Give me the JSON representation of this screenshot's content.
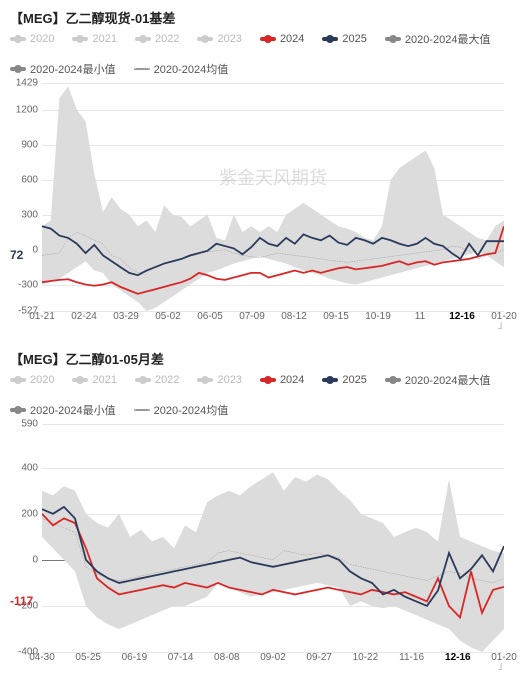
{
  "watermark": "紫金天风期货",
  "legend": {
    "items": [
      {
        "label": "2020",
        "color": "#cccccc",
        "inactive": true
      },
      {
        "label": "2021",
        "color": "#cccccc",
        "inactive": true
      },
      {
        "label": "2022",
        "color": "#cccccc",
        "inactive": true
      },
      {
        "label": "2023",
        "color": "#cccccc",
        "inactive": true
      },
      {
        "label": "2024",
        "color": "#d92626",
        "inactive": false
      },
      {
        "label": "2025",
        "color": "#2a3a5a",
        "inactive": false
      },
      {
        "label": "2020-2024最大值",
        "color": "#888888",
        "inactive": false
      },
      {
        "label": "2020-2024最小值",
        "color": "#888888",
        "inactive": false
      },
      {
        "label": "2020-2024均值",
        "color": "#999999",
        "inactive": false,
        "dashed": true
      }
    ]
  },
  "charts": [
    {
      "title": "【MEG】乙二醇现货-01基差",
      "ylim": [
        -527,
        1429
      ],
      "yticks": [
        -527,
        -300,
        0,
        300,
        600,
        900,
        1200,
        1429
      ],
      "xticks": [
        "01-21",
        "02-24",
        "03-29",
        "05-02",
        "06-05",
        "07-09",
        "08-12",
        "09-15",
        "10-19",
        "11",
        "12-16",
        "01-20"
      ],
      "xtick_bold_idx": 10,
      "xrange": 53,
      "highlight": {
        "value": 72,
        "color": "#2a3a5a",
        "text": "72"
      },
      "band_color": "#dcdcdc",
      "series": {
        "band_max": [
          200,
          250,
          1300,
          1400,
          1200,
          1100,
          650,
          320,
          450,
          350,
          300,
          200,
          250,
          150,
          380,
          300,
          280,
          200,
          250,
          300,
          100,
          80,
          300,
          150,
          200,
          150,
          200,
          150,
          300,
          350,
          400,
          350,
          300,
          250,
          200,
          180,
          150,
          100,
          80,
          200,
          600,
          700,
          750,
          800,
          850,
          700,
          300,
          250,
          200,
          150,
          100,
          80,
          200,
          250
        ],
        "band_min": [
          -300,
          -280,
          -250,
          -200,
          -150,
          -100,
          -180,
          -200,
          -300,
          -350,
          -400,
          -450,
          -527,
          -500,
          -450,
          -400,
          -350,
          -300,
          -250,
          -200,
          -180,
          -150,
          -120,
          -100,
          -80,
          -60,
          -80,
          -100,
          -120,
          -150,
          -180,
          -200,
          -220,
          -250,
          -270,
          -290,
          -300,
          -280,
          -260,
          -240,
          -220,
          -200,
          -180,
          -160,
          -140,
          -120,
          -100,
          -80,
          -60,
          -40,
          -20,
          -50,
          -100,
          -150
        ],
        "mean": [
          -50,
          -40,
          -30,
          100,
          150,
          120,
          80,
          50,
          -50,
          -80,
          -150,
          -200,
          -180,
          -150,
          -120,
          -100,
          -80,
          -60,
          -40,
          -20,
          -10,
          0,
          -30,
          -50,
          -60,
          -70,
          -50,
          -30,
          -40,
          -50,
          -60,
          -70,
          -80,
          -90,
          -100,
          -110,
          -100,
          -90,
          -80,
          -70,
          -60,
          -50,
          -40,
          -30,
          -20,
          -10,
          0,
          30,
          20,
          -10,
          -80,
          -50,
          -30,
          0
        ],
        "s2024": [
          -280,
          -270,
          -260,
          -255,
          -280,
          -300,
          -310,
          -300,
          -280,
          -320,
          -350,
          -380,
          -360,
          -340,
          -320,
          -300,
          -280,
          -250,
          -200,
          -220,
          -250,
          -260,
          -240,
          -220,
          -200,
          -200,
          -240,
          -220,
          -200,
          -180,
          -200,
          -180,
          -200,
          -180,
          -160,
          -150,
          -170,
          -160,
          -150,
          -140,
          -120,
          -100,
          -130,
          -110,
          -100,
          -130,
          -110,
          -100,
          -90,
          -80,
          -60,
          -40,
          -30,
          200
        ],
        "s2025": [
          200,
          180,
          120,
          100,
          50,
          -30,
          40,
          -50,
          -100,
          -150,
          -200,
          -220,
          -180,
          -150,
          -120,
          -100,
          -80,
          -50,
          -30,
          -10,
          50,
          30,
          10,
          -40,
          20,
          100,
          50,
          30,
          100,
          50,
          130,
          100,
          80,
          120,
          60,
          40,
          100,
          80,
          50,
          100,
          80,
          50,
          30,
          50,
          100,
          50,
          30,
          -30,
          -80,
          50,
          -50,
          72,
          72,
          72
        ]
      }
    },
    {
      "title": "【MEG】乙二醇01-05月差",
      "ylim": [
        -400,
        590
      ],
      "yticks": [
        -400,
        -200,
        0,
        200,
        400,
        590
      ],
      "xticks": [
        "04-30",
        "05-25",
        "06-19",
        "07-14",
        "08-08",
        "09-02",
        "09-27",
        "10-22",
        "11-16",
        "12-16",
        "01-20"
      ],
      "xtick_bold_idx": 9,
      "xrange": 42,
      "highlight": {
        "value": -117,
        "color": "#d92626",
        "text": "-117"
      },
      "band_color": "#dcdcdc",
      "series": {
        "band_max": [
          300,
          280,
          320,
          300,
          200,
          160,
          140,
          200,
          100,
          130,
          80,
          100,
          50,
          150,
          120,
          250,
          280,
          300,
          280,
          320,
          350,
          380,
          300,
          360,
          340,
          370,
          350,
          300,
          260,
          200,
          180,
          160,
          100,
          120,
          140,
          120,
          80,
          350,
          100,
          80,
          60,
          40,
          30
        ],
        "band_min": [
          100,
          50,
          0,
          -50,
          -200,
          -250,
          -280,
          -300,
          -280,
          -260,
          -240,
          -220,
          -200,
          -200,
          -180,
          -160,
          -100,
          -120,
          -140,
          -160,
          -150,
          -140,
          -130,
          -120,
          -110,
          -100,
          -110,
          -120,
          -200,
          -180,
          -200,
          -210,
          -200,
          -220,
          -240,
          -260,
          -280,
          -300,
          -350,
          -380,
          -400,
          -350,
          -300
        ],
        "mean": [
          180,
          160,
          140,
          120,
          -30,
          -60,
          -80,
          -90,
          -80,
          -70,
          -60,
          -50,
          -40,
          -30,
          -20,
          -10,
          30,
          40,
          30,
          20,
          10,
          0,
          40,
          30,
          20,
          30,
          20,
          10,
          -20,
          -30,
          -40,
          -50,
          -60,
          -70,
          -80,
          -90,
          -70,
          -50,
          -60,
          -80,
          -90,
          -100,
          -80
        ],
        "s2024": [
          200,
          150,
          180,
          160,
          50,
          -80,
          -120,
          -150,
          -140,
          -130,
          -120,
          -110,
          -120,
          -100,
          -110,
          -120,
          -100,
          -120,
          -130,
          -140,
          -150,
          -130,
          -140,
          -150,
          -140,
          -130,
          -120,
          -130,
          -140,
          -150,
          -130,
          -140,
          -150,
          -140,
          -160,
          -180,
          -80,
          -200,
          -250,
          -50,
          -230,
          -130,
          -117
        ],
        "s2025": [
          220,
          200,
          230,
          180,
          0,
          -50,
          -80,
          -100,
          -90,
          -80,
          -70,
          -60,
          -50,
          -40,
          -30,
          -20,
          -10,
          0,
          10,
          -10,
          -20,
          -30,
          -20,
          -10,
          0,
          10,
          20,
          0,
          -50,
          -80,
          -100,
          -150,
          -130,
          -160,
          -180,
          -200,
          -133,
          30,
          -80,
          -40,
          20,
          -50,
          60
        ]
      }
    }
  ],
  "colors": {
    "s2024": "#d92626",
    "s2025": "#2a3a5a",
    "mean": "#999999",
    "band": "#dcdcdc",
    "grid": "#e6e6e6",
    "axis_text": "#666666"
  }
}
